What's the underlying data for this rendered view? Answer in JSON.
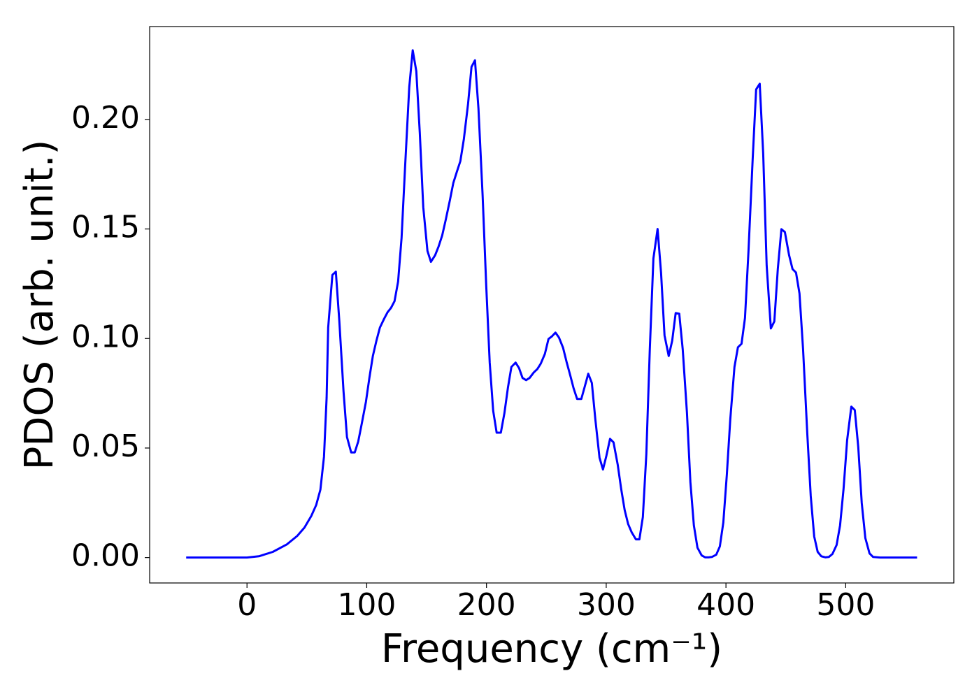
{
  "chart_data": {
    "type": "line",
    "x_label": "Frequency (cm⁻¹)",
    "y_label": "PDOS (arb. unit.)",
    "x": [
      -50.8,
      0,
      10,
      21.6,
      33.3,
      42,
      48,
      53.7,
      57.8,
      61.3,
      64.3,
      66.5,
      67.8,
      71.3,
      74.2,
      77.1,
      80.6,
      83.5,
      87,
      90,
      92.9,
      95.8,
      99.3,
      102.2,
      105.1,
      108.1,
      111,
      114.5,
      117.4,
      120.3,
      123.2,
      126.2,
      129.1,
      132,
      135.5,
      138.4,
      141.4,
      144.3,
      147.2,
      150.7,
      153.6,
      157.1,
      160,
      163,
      165.9,
      169.4,
      172.3,
      175.2,
      178.2,
      181.1,
      184.6,
      187.5,
      190.4,
      193.3,
      196.8,
      199.8,
      202.7,
      205.6,
      208.5,
      212,
      215,
      217.9,
      220.8,
      224.3,
      227.2,
      230.1,
      233.1,
      236,
      239.5,
      242.4,
      245.3,
      248.8,
      251.8,
      254.7,
      257.6,
      260.5,
      264,
      266.9,
      269.9,
      272.8,
      275.7,
      279.2,
      282.1,
      285,
      288,
      290.9,
      294.4,
      297.3,
      300.2,
      303.2,
      306.1,
      309.6,
      312.5,
      315.4,
      318.3,
      321.3,
      324.8,
      327.7,
      330.6,
      333.5,
      336.4,
      339.4,
      342.9,
      345.8,
      348.7,
      352.2,
      355.1,
      358,
      361,
      363.9,
      367.4,
      370.3,
      373.2,
      376.2,
      379.7,
      382.6,
      385.5,
      388.4,
      391.9,
      394.9,
      397.8,
      400.7,
      403.6,
      407.1,
      410,
      413,
      415.9,
      418.8,
      422.3,
      425.2,
      428.2,
      431.1,
      434,
      437.5,
      440.4,
      443.3,
      446.3,
      449.2,
      452.7,
      455.6,
      458.5,
      461.4,
      464.4,
      467.9,
      470.8,
      473.7,
      476.6,
      479.6,
      483,
      486,
      488.9,
      492.4,
      495.3,
      498.2,
      501.2,
      504.7,
      507.6,
      510.5,
      513.4,
      516.4,
      519.9,
      522.8,
      528.6,
      559.6
    ],
    "series": [
      {
        "color": "#0000ff",
        "values": [
          0,
          0,
          0.0006,
          0.0026,
          0.006,
          0.0099,
          0.0137,
          0.019,
          0.024,
          0.031,
          0.046,
          0.073,
          0.105,
          0.129,
          0.1305,
          0.108,
          0.076,
          0.055,
          0.048,
          0.048,
          0.053,
          0.061,
          0.071,
          0.082,
          0.092,
          0.099,
          0.105,
          0.109,
          0.112,
          0.114,
          0.117,
          0.126,
          0.146,
          0.178,
          0.2147,
          0.2316,
          0.222,
          0.194,
          0.16,
          0.14,
          0.135,
          0.138,
          0.142,
          0.147,
          0.154,
          0.163,
          0.171,
          0.176,
          0.181,
          0.191,
          0.207,
          0.224,
          0.227,
          0.205,
          0.165,
          0.124,
          0.089,
          0.067,
          0.057,
          0.057,
          0.066,
          0.0775,
          0.087,
          0.089,
          0.0865,
          0.082,
          0.081,
          0.082,
          0.0845,
          0.086,
          0.0885,
          0.093,
          0.0998,
          0.101,
          0.1027,
          0.1005,
          0.0957,
          0.0893,
          0.0833,
          0.0772,
          0.0724,
          0.0724,
          0.0781,
          0.0839,
          0.0797,
          0.0632,
          0.0456,
          0.0402,
          0.0466,
          0.0542,
          0.0526,
          0.0424,
          0.0313,
          0.0217,
          0.0153,
          0.0115,
          0.0083,
          0.0083,
          0.0185,
          0.0472,
          0.095,
          0.1365,
          0.15,
          0.13,
          0.1014,
          0.092,
          0.099,
          0.1116,
          0.1113,
          0.095,
          0.0663,
          0.0344,
          0.0147,
          0.0045,
          0.001,
          0.0001,
          0.0001,
          0.0003,
          0.0013,
          0.0051,
          0.016,
          0.0376,
          0.063,
          0.087,
          0.096,
          0.0976,
          0.1094,
          0.1397,
          0.1818,
          0.2137,
          0.2163,
          0.1844,
          0.1333,
          0.1046,
          0.1078,
          0.1317,
          0.1499,
          0.1486,
          0.1381,
          0.1317,
          0.1301,
          0.1206,
          0.0951,
          0.0568,
          0.0281,
          0.0096,
          0.0026,
          0.0006,
          0.0001,
          0.0003,
          0.0016,
          0.0057,
          0.0147,
          0.0313,
          0.0536,
          0.0689,
          0.0673,
          0.0504,
          0.0249,
          0.0089,
          0.0019,
          0.0003,
          0,
          0
        ]
      }
    ],
    "xlim": [
      -81.3,
      590.3
    ],
    "ylim": [
      -0.0116,
      0.2424
    ],
    "xticks": [
      0,
      100,
      200,
      300,
      400,
      500
    ],
    "yticks": [
      {
        "value": 0,
        "label": "0.00"
      },
      {
        "value": 0.05,
        "label": "0.05"
      },
      {
        "value": 0.1,
        "label": "0.10"
      },
      {
        "value": 0.15,
        "label": "0.15"
      },
      {
        "value": 0.2,
        "label": "0.20"
      }
    ]
  }
}
